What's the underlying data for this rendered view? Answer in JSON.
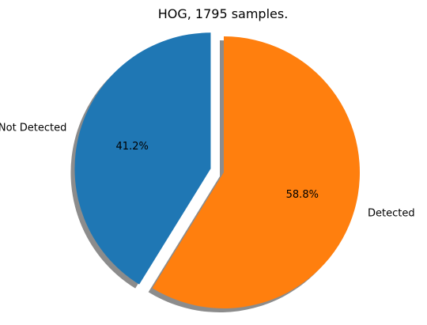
{
  "chart_data": {
    "type": "pie",
    "title": "HOG, 1795 samples.",
    "start_angle_deg": 90,
    "counterclockwise": true,
    "shadow": true,
    "slices": [
      {
        "label": "Not Detected",
        "value": 41.2,
        "pct_label": "41.2%",
        "color": "#1f77b4",
        "explode": 0.1
      },
      {
        "label": "Detected",
        "value": 58.8,
        "pct_label": "58.8%",
        "color": "#ff7f0e",
        "explode": 0
      }
    ]
  }
}
